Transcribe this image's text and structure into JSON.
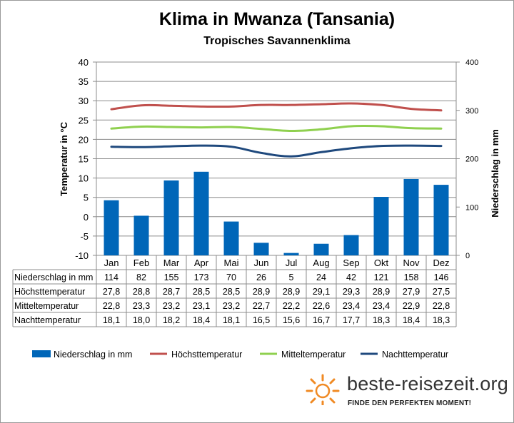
{
  "header": {
    "title": "Klima in Mwanza (Tansania)",
    "subtitle": "Tropisches Savannenklima"
  },
  "chart_data": {
    "type": "bar",
    "title": "Klima in Mwanza (Tansania)",
    "subtitle": "Tropisches Savannenklima",
    "categories": [
      "Jan",
      "Feb",
      "Mar",
      "Apr",
      "Mai",
      "Jun",
      "Jul",
      "Aug",
      "Sep",
      "Okt",
      "Nov",
      "Dez"
    ],
    "y_left": {
      "label": "Temperatur in °C",
      "lim": [
        -10,
        40
      ],
      "ticks": [
        -10,
        -5,
        0,
        5,
        10,
        15,
        20,
        25,
        30,
        35,
        40
      ]
    },
    "y_right": {
      "label": "Niederschlag in mm",
      "lim": [
        0,
        400
      ],
      "ticks": [
        0,
        100,
        200,
        300,
        400
      ]
    },
    "grid": true,
    "legend_position": "bottom",
    "series": [
      {
        "name": "Niederschlag in mm",
        "type": "bar",
        "axis": "right",
        "color": "#0066b8",
        "values": [
          114,
          82,
          155,
          173,
          70,
          26,
          5,
          24,
          42,
          121,
          158,
          146
        ],
        "display": [
          "114",
          "82",
          "155",
          "173",
          "70",
          "26",
          "5",
          "24",
          "42",
          "121",
          "158",
          "146"
        ]
      },
      {
        "name": "Höchsttemperatur",
        "type": "line",
        "axis": "left",
        "color": "#c0504d",
        "values": [
          27.8,
          28.8,
          28.7,
          28.5,
          28.5,
          28.9,
          28.9,
          29.1,
          29.3,
          28.9,
          27.9,
          27.5
        ],
        "display": [
          "27,8",
          "28,8",
          "28,7",
          "28,5",
          "28,5",
          "28,9",
          "28,9",
          "29,1",
          "29,3",
          "28,9",
          "27,9",
          "27,5"
        ]
      },
      {
        "name": "Mitteltemperatur",
        "type": "line",
        "axis": "left",
        "color": "#8fd04f",
        "values": [
          22.8,
          23.3,
          23.2,
          23.1,
          23.2,
          22.7,
          22.2,
          22.6,
          23.4,
          23.4,
          22.9,
          22.8
        ],
        "display": [
          "22,8",
          "23,3",
          "23,2",
          "23,1",
          "23,2",
          "22,7",
          "22,2",
          "22,6",
          "23,4",
          "23,4",
          "22,9",
          "22,8"
        ]
      },
      {
        "name": "Nachttemperatur",
        "type": "line",
        "axis": "left",
        "color": "#1f497d",
        "values": [
          18.1,
          18.0,
          18.2,
          18.4,
          18.1,
          16.5,
          15.6,
          16.7,
          17.7,
          18.3,
          18.4,
          18.3
        ],
        "display": [
          "18,1",
          "18,0",
          "18,2",
          "18,4",
          "18,1",
          "16,5",
          "15,6",
          "16,7",
          "17,7",
          "18,3",
          "18,4",
          "18,3"
        ]
      }
    ]
  },
  "footer": {
    "logo_text": "beste-reisezeit.org",
    "logo_tagline": "FINDE DEN PERFEKTEN MOMENT!",
    "logo_icon": "sun-icon"
  }
}
